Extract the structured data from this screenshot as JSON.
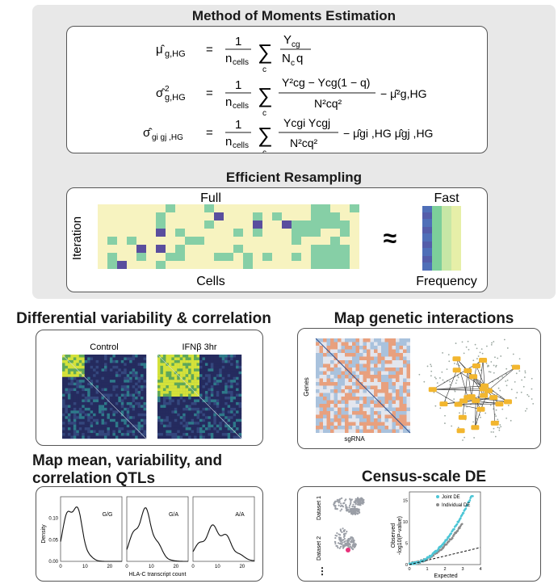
{
  "method": {
    "title": "Method of Moments Estimation",
    "eq1": {
      "lhs": "μ̂",
      "lhs_sub": "g,HG",
      "num_frac": "1",
      "den_frac": "n",
      "den_sub": "cells",
      "sum": "∑",
      "sum_idx": "c",
      "num": "Y",
      "num_sub": "cg",
      "den": "N",
      "den_sub2": "c",
      "den_tail": "q"
    },
    "eq2": {
      "lhs": "σ̂",
      "lhs_sup": "2",
      "lhs_sub": "g,HG",
      "num_text": "Y²cg − Ycg(1 − q)",
      "den_text": "N²cq²",
      "tail": "− μ̂²g,HG"
    },
    "eq3": {
      "lhs": "σ̂",
      "lhs_sub": "gi gj ,HG",
      "num_text": "Ycgi Ycgj",
      "den_text": "N²cq²",
      "tail": "− μ̂gi ,HG μ̂gj ,HG"
    }
  },
  "resampling": {
    "title": "Efficient Resampling",
    "full_label": "Full",
    "iteration_label": "Iteration",
    "cells_label": "Cells",
    "approx_symbol": "≈",
    "fast_label": "Fast",
    "frequency_label": "Frequency"
  },
  "sections": {
    "diff_var": {
      "heading": "Differential variability & correlation",
      "control_label": "Control",
      "ifn_label": "IFNβ 3hr"
    },
    "genetic": {
      "heading": "Map genetic interactions",
      "genes_label": "Genes",
      "sgrna_label": "sgRNA"
    },
    "qtl": {
      "heading_line1": "Map mean, variability, and",
      "heading_line2": "correlation QTLs",
      "ylabel": "Density",
      "xlabel": "HLA-C transcript count",
      "panels": [
        "G/G",
        "G/A",
        "A/A"
      ],
      "yticks": [
        "0.10",
        "0.05",
        "0.00"
      ],
      "xticks": [
        "0",
        "10",
        "20"
      ]
    },
    "census": {
      "heading": "Census-scale DE",
      "dataset1": "Dataset 1",
      "dataset2": "Dataset 2",
      "dots": "⋮",
      "legend_joint": "Joint DE",
      "legend_individual": "Individual DE",
      "ylabel_line1": "Observed",
      "ylabel_line2": "-log10(P-value)",
      "xlabel": "Expected",
      "xticks": [
        "0",
        "1",
        "2",
        "3",
        "4"
      ],
      "yticks": [
        "0",
        "5",
        "10",
        "15"
      ]
    }
  },
  "colors": {
    "cream": "#f7f3c0",
    "teal": "#86cfa6",
    "purple": "#5a4e9e",
    "heatmap_yellow": "#d4e23a",
    "heatmap_navy": "#2a2e6a",
    "node_orange": "#f2b62f",
    "joint_cyan": "#4dc6d6",
    "individual_gray": "#8a8a8a",
    "highlight_pink": "#e8317a"
  }
}
